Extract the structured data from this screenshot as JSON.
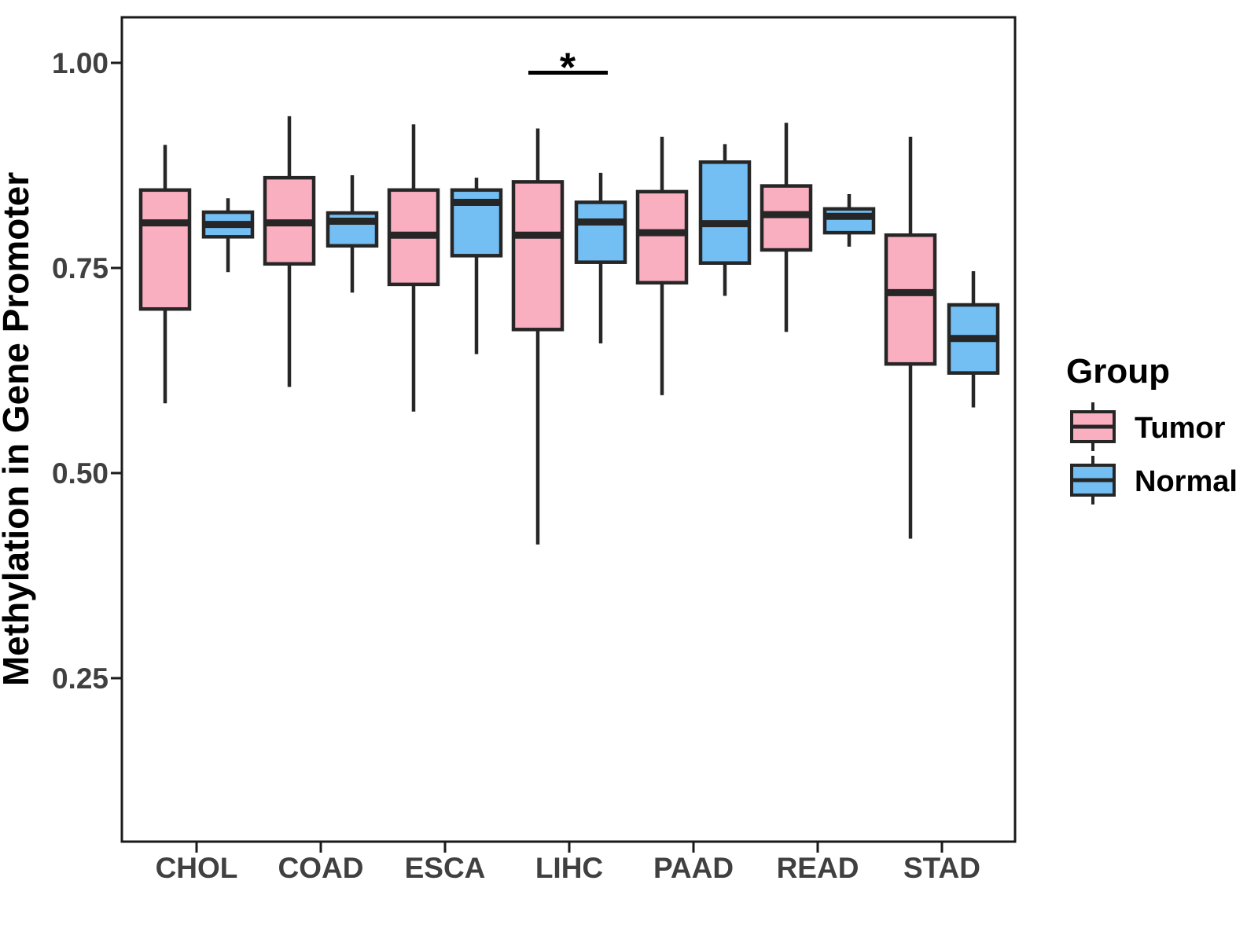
{
  "figure": {
    "background": "#FFFFFF"
  },
  "chart_data": {
    "type": "boxplot",
    "title": "",
    "xlabel": "",
    "ylabel": "Methylation in Gene Promoter",
    "categories": [
      "CHOL",
      "COAD",
      "ESCA",
      "LIHC",
      "PAAD",
      "READ",
      "STAD"
    ],
    "y_axis": {
      "ticks": [
        1.0,
        0.75,
        0.5,
        0.25
      ],
      "tick_labels": [
        "1.00",
        "0.75",
        "0.50",
        "0.25"
      ],
      "range": [
        0.05,
        1.06
      ],
      "grid": false
    },
    "series": [
      {
        "name": "Tumor",
        "color": "#FAAFC1",
        "boxes": [
          {
            "category": "CHOL",
            "whisker_low": 0.585,
            "q1": 0.7,
            "median": 0.805,
            "q3": 0.845,
            "whisker_high": 0.9
          },
          {
            "category": "COAD",
            "whisker_low": 0.605,
            "q1": 0.755,
            "median": 0.805,
            "q3": 0.86,
            "whisker_high": 0.935
          },
          {
            "category": "ESCA",
            "whisker_low": 0.575,
            "q1": 0.73,
            "median": 0.79,
            "q3": 0.845,
            "whisker_high": 0.925
          },
          {
            "category": "LIHC",
            "whisker_low": 0.413,
            "q1": 0.675,
            "median": 0.79,
            "q3": 0.855,
            "whisker_high": 0.92
          },
          {
            "category": "PAAD",
            "whisker_low": 0.595,
            "q1": 0.732,
            "median": 0.793,
            "q3": 0.843,
            "whisker_high": 0.91
          },
          {
            "category": "READ",
            "whisker_low": 0.672,
            "q1": 0.772,
            "median": 0.815,
            "q3": 0.85,
            "whisker_high": 0.927
          },
          {
            "category": "STAD",
            "whisker_low": 0.42,
            "q1": 0.633,
            "median": 0.72,
            "q3": 0.79,
            "whisker_high": 0.91
          }
        ]
      },
      {
        "name": "Normal",
        "color": "#73BEF3",
        "boxes": [
          {
            "category": "CHOL",
            "whisker_low": 0.745,
            "q1": 0.788,
            "median": 0.803,
            "q3": 0.818,
            "whisker_high": 0.835
          },
          {
            "category": "COAD",
            "whisker_low": 0.72,
            "q1": 0.777,
            "median": 0.807,
            "q3": 0.817,
            "whisker_high": 0.863
          },
          {
            "category": "ESCA",
            "whisker_low": 0.645,
            "q1": 0.765,
            "median": 0.83,
            "q3": 0.845,
            "whisker_high": 0.86
          },
          {
            "category": "LIHC",
            "whisker_low": 0.658,
            "q1": 0.757,
            "median": 0.806,
            "q3": 0.83,
            "whisker_high": 0.866
          },
          {
            "category": "PAAD",
            "whisker_low": 0.716,
            "q1": 0.756,
            "median": 0.804,
            "q3": 0.879,
            "whisker_high": 0.901
          },
          {
            "category": "READ",
            "whisker_low": 0.776,
            "q1": 0.793,
            "median": 0.813,
            "q3": 0.822,
            "whisker_high": 0.84
          },
          {
            "category": "STAD",
            "whisker_low": 0.58,
            "q1": 0.622,
            "median": 0.664,
            "q3": 0.705,
            "whisker_high": 0.746
          }
        ]
      }
    ],
    "annotations": [
      {
        "type": "significance",
        "label": "*",
        "category": "LIHC",
        "bar_y": 0.988,
        "spans": [
          "Tumor",
          "Normal"
        ]
      }
    ],
    "legend": {
      "title": "Group",
      "position": "right",
      "entries": [
        {
          "label": "Tumor",
          "color": "#FAAFC1"
        },
        {
          "label": "Normal",
          "color": "#73BEF3"
        }
      ]
    },
    "style": {
      "box_border": "#262626",
      "whisker_color": "#262626",
      "panel_border": "#1A1A1A",
      "axis_text": "#404040",
      "title_text": "#000000",
      "legend_text": "#000000",
      "annotation_color": "#000000"
    }
  }
}
